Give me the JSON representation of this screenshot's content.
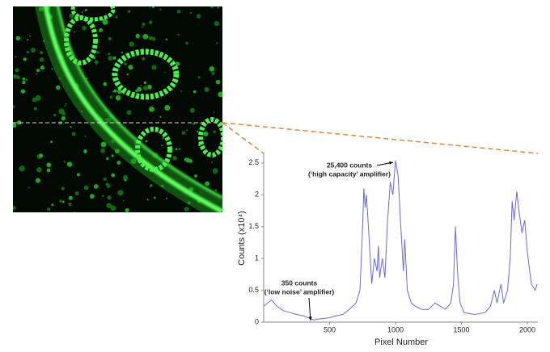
{
  "chart_data": {
    "type": "line",
    "x_label": "Pixel Number",
    "y_label": "Counts (x10⁴)",
    "annotations": [
      [
        "25,400 counts",
        "(‘high capacity’ amplifier)"
      ],
      [
        "350 counts",
        "(‘low noise’ amplifier)"
      ]
    ],
    "x": [
      0,
      30,
      60,
      100,
      150,
      200,
      250,
      300,
      350,
      380,
      420,
      500,
      550,
      600,
      650,
      700,
      730,
      745,
      760,
      770,
      780,
      800,
      820,
      840,
      860,
      870,
      880,
      900,
      920,
      940,
      960,
      980,
      1000,
      1020,
      1040,
      1060,
      1070,
      1090,
      1120,
      1150,
      1200,
      1250,
      1300,
      1340,
      1380,
      1420,
      1440,
      1455,
      1470,
      1490,
      1520,
      1600,
      1680,
      1720,
      1750,
      1770,
      1800,
      1820,
      1850,
      1870,
      1885,
      1900,
      1920,
      1940,
      1960,
      1980,
      2000,
      2030,
      2060,
      2075
    ],
    "series": [
      {
        "name": "Counts",
        "color": "#6a6ad8",
        "values": [
          0.25,
          0.3,
          0.35,
          0.25,
          0.18,
          0.15,
          0.12,
          0.1,
          0.06,
          0.035,
          0.05,
          0.07,
          0.1,
          0.12,
          0.2,
          0.3,
          0.5,
          1.2,
          2.1,
          1.8,
          2.0,
          1.3,
          0.6,
          1.0,
          0.8,
          1.2,
          0.7,
          1.0,
          0.7,
          1.6,
          2.2,
          2.0,
          2.54,
          2.3,
          1.5,
          0.8,
          1.3,
          0.5,
          0.3,
          0.25,
          0.2,
          0.2,
          0.3,
          0.25,
          0.2,
          0.3,
          0.6,
          1.5,
          0.8,
          0.3,
          0.15,
          0.12,
          0.15,
          0.25,
          0.5,
          0.3,
          0.6,
          0.3,
          0.5,
          1.0,
          1.9,
          1.6,
          2.05,
          1.7,
          1.4,
          1.6,
          1.1,
          0.6,
          0.5,
          0.6
        ]
      }
    ],
    "xlim": [
      0,
      2080
    ],
    "ylim": [
      0,
      2.65
    ],
    "xticks": [
      500,
      1000,
      1500,
      2000
    ],
    "yticks": [
      0,
      0.5,
      1,
      1.5,
      2,
      2.5
    ]
  }
}
